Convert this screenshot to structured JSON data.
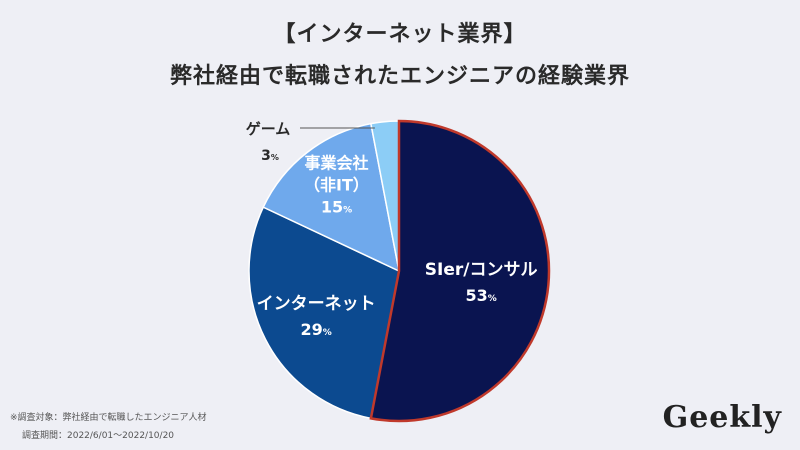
{
  "title": {
    "line1": "【インターネット業界】",
    "line2": "弊社経由で転職されたエンジニアの経験業界"
  },
  "chart_data": {
    "type": "pie",
    "slices": [
      {
        "label": "SIer/コンサル",
        "value": 53,
        "unit": "%",
        "color": "#0a1450"
      },
      {
        "label": "インターネット",
        "value": 29,
        "unit": "%",
        "color": "#0c4a90"
      },
      {
        "label": "事業会社",
        "label2": "（非IT）",
        "value": 15,
        "unit": "%",
        "color": "#6fa9ec"
      },
      {
        "label": "ゲーム",
        "value": 3,
        "unit": "%",
        "color": "#8ccdf6"
      }
    ]
  },
  "footnotes": [
    "※調査対象：弊社経由で転職したエンジニア人材",
    "調査期間：2022/6/01〜2022/10/20"
  ],
  "logo": "Geekly"
}
